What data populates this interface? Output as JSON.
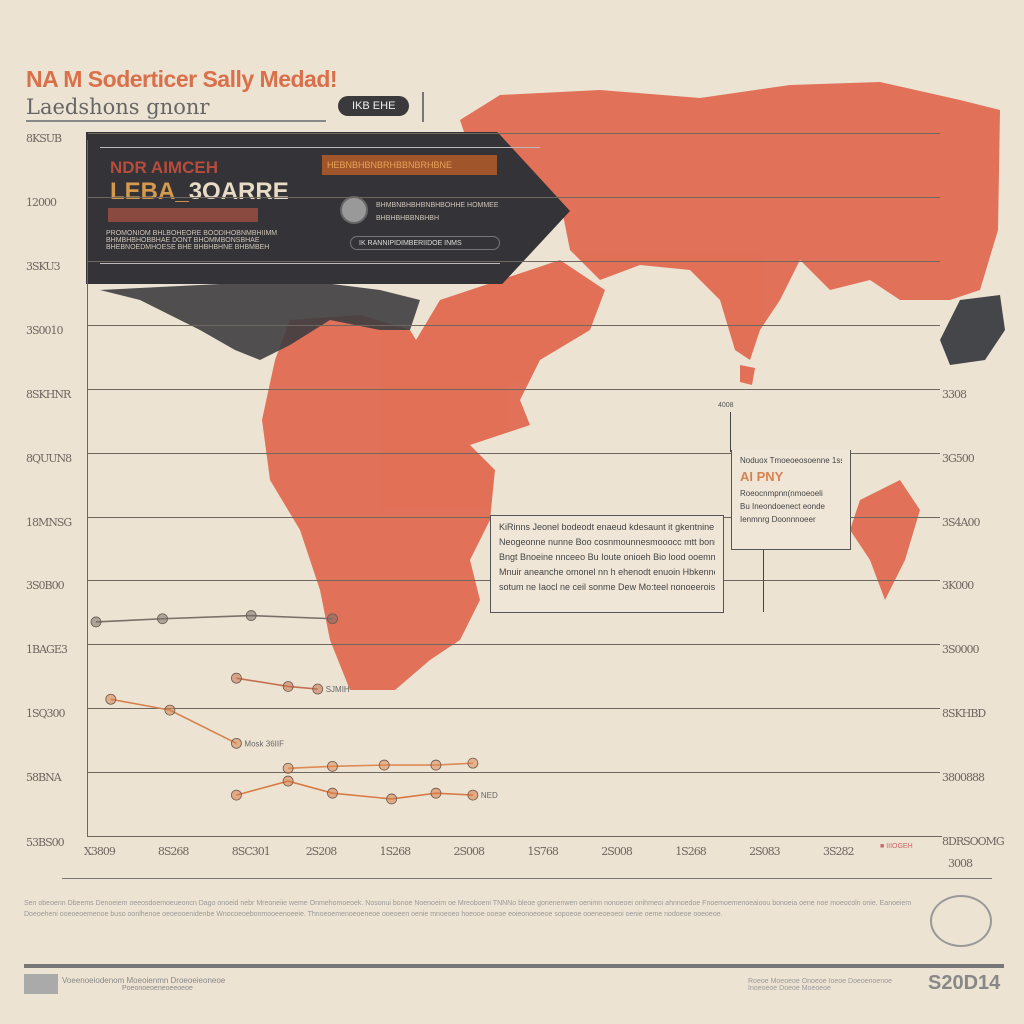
{
  "header": {
    "title": "NA M Soderticer Sally Medad!",
    "subtitle": "Laedshons gnonr",
    "badge": "IKB EHE"
  },
  "banner": {
    "line1": "NDR AIMCEH",
    "line2a": "LEBA_",
    "line2b": "3OARRE",
    "orange_bar": "HEBNBHBNBRHBBNBRHBNE",
    "text_lines": [
      "PROMONIOM BHLBOHEORE BOODIHOBNMBHIIMM",
      "BHMBHBHOBBHAE DONT BHOMMBONSBHAE",
      "BHEBNOEDMHOESE BHE BHBHBHNE BHBMBEH"
    ],
    "right_lines": [
      "BHMBNBHBHBNBHBOHHE HOMMEE",
      "BHBHBHBBNBHBH"
    ],
    "pill": "IK RANNIPIDIMBERIIDOE INMS"
  },
  "note_box": {
    "lines": [
      "KiRinns Jeonel bodeodt enaeud kdesaunt it gkentnine",
      "Neogeonne nunne Boo cosnmounnesmooocc mtt bonnsh",
      "Bngt Bnoeine nnceeo Bu Ioute onioeh Bio lood ooemnineuss",
      "Mnuir aneanche omonel nn h ehenodt enuoin Hbkenner:",
      "sotum ne Iaocl ne ceil sonme Dew Mo:teel nonoeeroisonno"
    ]
  },
  "callout": {
    "top_label": "4008",
    "header": "Noduox Tmoeoeosoenne 1ss",
    "title": "AI PNY",
    "lines": [
      "Roeocnmpnn(nmoeoeli",
      "Bu Ineondoenect eonde",
      "Ienmnrg Doonnnoeer"
    ]
  },
  "chart_data": {
    "type": "line",
    "title": "",
    "xlabel": "",
    "ylabel": "",
    "categories": [
      "X3809",
      "8S268",
      "8SC301",
      "2S208",
      "1S268",
      "2S008",
      "1S768",
      "2S008",
      "1S268",
      "2S083",
      "3S282"
    ],
    "y_tick_labels_left": [
      "8KSUB",
      "12000",
      "3SKU3",
      "3S0010",
      "8SKHNR",
      "8QUUN8",
      "18MNSG",
      "3S0B00",
      "1BAGE3",
      "1SQ300",
      "58BNA",
      "53BS00"
    ],
    "y_tick_labels_right": [
      "3308",
      "3G500",
      "3S4A00",
      "3K000",
      "3S0000",
      "8SKHBD",
      "3800888",
      "8DRSOOMG"
    ],
    "x_extra_label": "3008",
    "ylim": [
      0,
      11
    ],
    "grid": true,
    "legend": {
      "label": "IIIOGEH",
      "placement": "bottom-right"
    },
    "series": [
      {
        "color": "#7a7068",
        "x": [
          0,
          0.9,
          2.1,
          3.2
        ],
        "y": [
          3.35,
          3.4,
          3.45,
          3.4
        ]
      },
      {
        "color": "#c4714f",
        "x": [
          1.9,
          2.6,
          3.0
        ],
        "y": [
          2.47,
          2.34,
          2.3
        ],
        "label": "SJMIH"
      },
      {
        "color": "#d4824f",
        "x": [
          0.2,
          1.0,
          1.9
        ],
        "y": [
          2.14,
          1.97,
          1.45
        ],
        "label": "Mosk 36IIF"
      },
      {
        "color": "#dd8a55",
        "x": [
          2.6,
          3.2,
          3.9,
          4.6,
          5.1
        ],
        "y": [
          1.06,
          1.09,
          1.11,
          1.11,
          1.14
        ]
      },
      {
        "color": "#d87a45",
        "x": [
          1.9,
          2.6,
          3.2,
          4.0,
          4.6,
          5.1
        ],
        "y": [
          0.64,
          0.86,
          0.67,
          0.58,
          0.67,
          0.64
        ],
        "label": "NED"
      }
    ]
  },
  "footer": {
    "body": "Sen obeoenn Dbeems Denoeiem oeeosdoemoeueoncn Dago onoeid nebr Mreoneiie weme Onmehomoeoek. Nosonui bonoe Noenoeim oe Mreoboeni TNNNo bleoe gonenenwen oenimn nonoeoei onihmeoi ahnnoedoe Fnoemoemenoeaioou bonoeia oene noe moeocoln onie. Eanoeiem Doeoeheni ooeoeoemenoe buso oonlhenoe oeoeooenidenbe Wnocoeoebonmooeenoeeie. Thnoeoemenoeoeneoe ooeoeen oenie mnoeoeo hoeooe ooeoe eoieonoeoeoe sopoeoe ooeneoeoeoi oenie oeme nodoeoe ooeoeoe.",
    "left_text": "Voeenoeiodenom Moeoienmn Droeoeieoneoe",
    "left_sub": "Poeonoeoeneoeeoeoe",
    "right_text": "Roeoe Moeoeoe Onoeoe Ioeoe Doeoenoenoe Inoeoeoe Doeoe Moeoeoe",
    "logo": "S20D14"
  },
  "colors": {
    "map": "#e0674d",
    "banner": "#343337",
    "background": "#ede3d3"
  }
}
